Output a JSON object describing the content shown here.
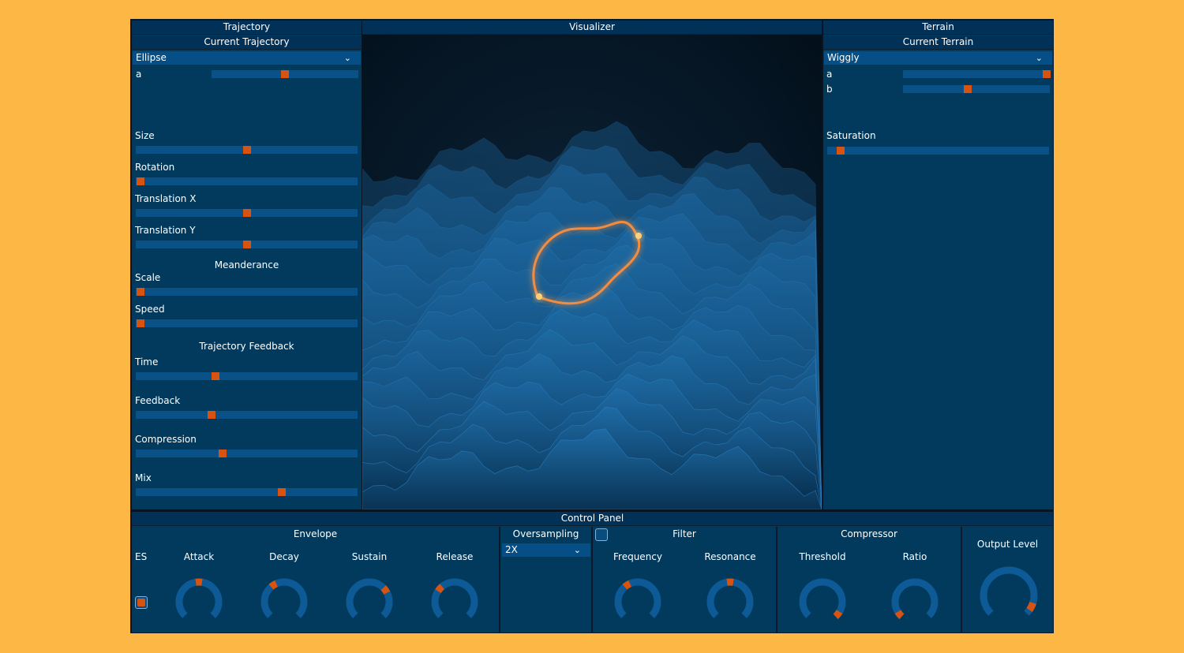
{
  "trajectory": {
    "header": "Trajectory",
    "current_header": "Current Trajectory",
    "dropdown_value": "Ellipse",
    "param_a_label": "a",
    "param_a_value": 0.5,
    "sliders": [
      {
        "label": "Size",
        "value": 0.5
      },
      {
        "label": "Rotation",
        "value": 0.02
      },
      {
        "label": "Translation X",
        "value": 0.5
      },
      {
        "label": "Translation Y",
        "value": 0.5
      }
    ],
    "meanderance_header": "Meanderance",
    "meanderance_sliders": [
      {
        "label": "Scale",
        "value": 0.02
      },
      {
        "label": "Speed",
        "value": 0.02
      }
    ],
    "feedback_header": "Trajectory Feedback",
    "feedback_sliders": [
      {
        "label": "Time",
        "value": 0.36
      },
      {
        "label": "Feedback",
        "value": 0.34
      },
      {
        "label": "Compression",
        "value": 0.39
      },
      {
        "label": "Mix",
        "value": 0.66
      }
    ]
  },
  "visualizer": {
    "header": "Visualizer"
  },
  "terrain": {
    "header": "Terrain",
    "current_header": "Current Terrain",
    "dropdown_value": "Wiggly",
    "params": [
      {
        "label": "a",
        "value": 0.98
      },
      {
        "label": "b",
        "value": 0.44
      }
    ],
    "saturation_label": "Saturation",
    "saturation_value": 0.06
  },
  "control_panel": {
    "header": "Control Panel",
    "envelope": {
      "header": "Envelope",
      "es_label": "ES",
      "knobs": [
        {
          "label": "Attack",
          "value": 0.5
        },
        {
          "label": "Decay",
          "value": 0.38
        },
        {
          "label": "Sustain",
          "value": 0.7
        },
        {
          "label": "Release",
          "value": 0.32
        }
      ]
    },
    "oversampling": {
      "header": "Oversampling",
      "value": "2X"
    },
    "filter": {
      "header": "Filter",
      "knobs": [
        {
          "label": "Frequency",
          "value": 0.38
        },
        {
          "label": "Resonance",
          "value": 0.5
        }
      ]
    },
    "compressor": {
      "header": "Compressor",
      "knobs": [
        {
          "label": "Threshold",
          "value": 0.98
        },
        {
          "label": "Ratio",
          "value": 0.02
        }
      ]
    },
    "output": {
      "label": "Output Level",
      "value": 0.93
    }
  },
  "colors": {
    "background": "#fdb745",
    "panel": "#013a5d",
    "track": "#0a5188",
    "accent": "#d8530f",
    "glow": "#ff9a40"
  }
}
